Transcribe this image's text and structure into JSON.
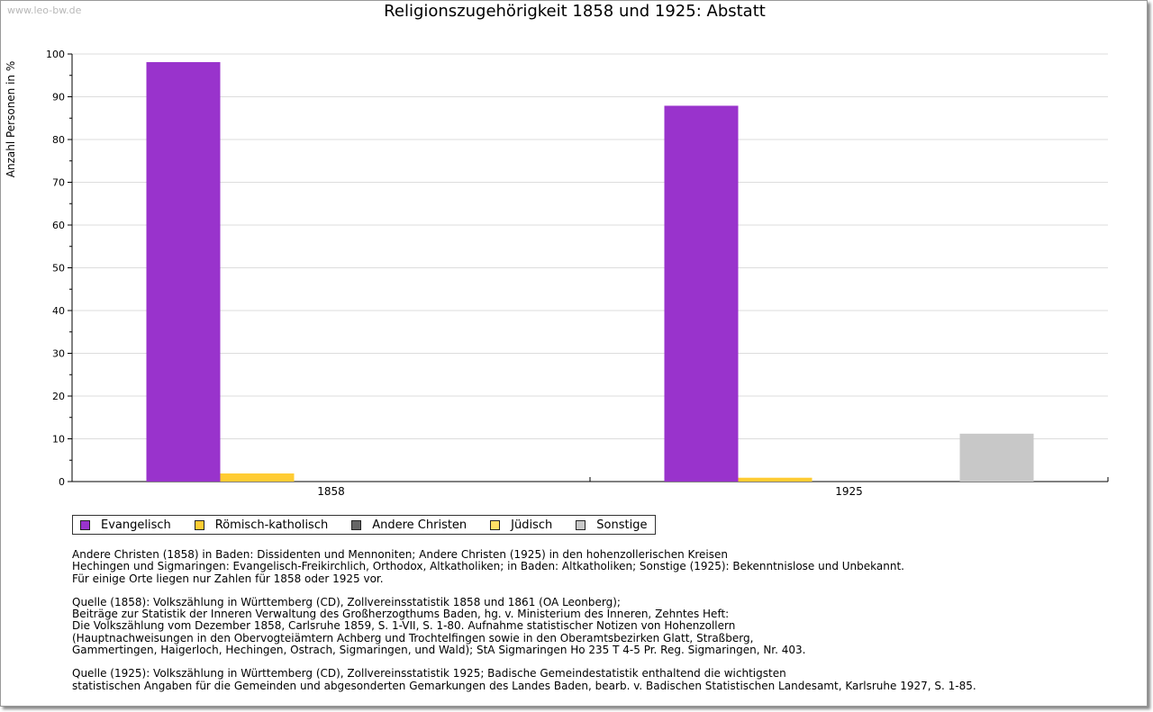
{
  "watermark": "www.leo-bw.de",
  "chart_data": {
    "type": "bar",
    "title": "Religionszugehörigkeit 1858 und 1925: Abstatt",
    "ylabel": "Anzahl Personen in %",
    "xlabel": "",
    "ylim": [
      0,
      100
    ],
    "yticks": [
      0,
      10,
      20,
      30,
      40,
      50,
      60,
      70,
      80,
      90,
      100
    ],
    "categories": [
      "1858",
      "1925"
    ],
    "grid": true,
    "legend_position": "bottom",
    "series": [
      {
        "name": "Evangelisch",
        "color": "#9933cc",
        "values": [
          98.1,
          87.9
        ]
      },
      {
        "name": "Römisch-katholisch",
        "color": "#ffcc33",
        "values": [
          1.9,
          0.9
        ]
      },
      {
        "name": "Andere Christen",
        "color": "#666666",
        "values": [
          0,
          0
        ]
      },
      {
        "name": "Jüdisch",
        "color": "#ffe066",
        "values": [
          0,
          0
        ]
      },
      {
        "name": "Sonstige",
        "color": "#c8c8c8",
        "values": [
          0,
          11.2
        ]
      }
    ]
  },
  "notes": [
    "Andere Christen (1858) in Baden: Dissidenten und Mennoniten; Andere Christen (1925) in den hohenzollerischen Kreisen\nHechingen und Sigmaringen: Evangelisch-Freikirchlich, Orthodox, Altkatholiken; in Baden: Altkatholiken; Sonstige (1925): Bekenntnislose und Unbekannt.\nFür einige Orte liegen nur Zahlen für 1858 oder 1925 vor.",
    "Quelle (1858): Volkszählung in Württemberg (CD), Zollvereinsstatistik 1858 und 1861 (OA Leonberg);\nBeiträge zur Statistik der Inneren Verwaltung des Großherzogthums Baden, hg. v. Ministerium des Inneren, Zehntes Heft:\nDie Volkszählung vom Dezember 1858, Carlsruhe 1859, S. 1-VII, S. 1-80. Aufnahme statistischer Notizen von Hohenzollern\n(Hauptnachweisungen in den Obervogteiämtern Achberg und Trochtelfingen sowie in den Oberamtsbezirken Glatt, Straßberg,\nGammertingen, Haigerloch, Hechingen, Ostrach, Sigmaringen, und Wald); StA Sigmaringen Ho 235 T 4-5 Pr. Reg. Sigmaringen, Nr. 403.",
    "Quelle (1925): Volkszählung in Württemberg (CD), Zollvereinsstatistik 1925; Badische Gemeindestatistik enthaltend die wichtigsten\nstatistischen Angaben für die Gemeinden und abgesonderten Gemarkungen des Landes Baden, bearb. v. Badischen Statistischen Landesamt, Karlsruhe 1927, S. 1-85."
  ]
}
